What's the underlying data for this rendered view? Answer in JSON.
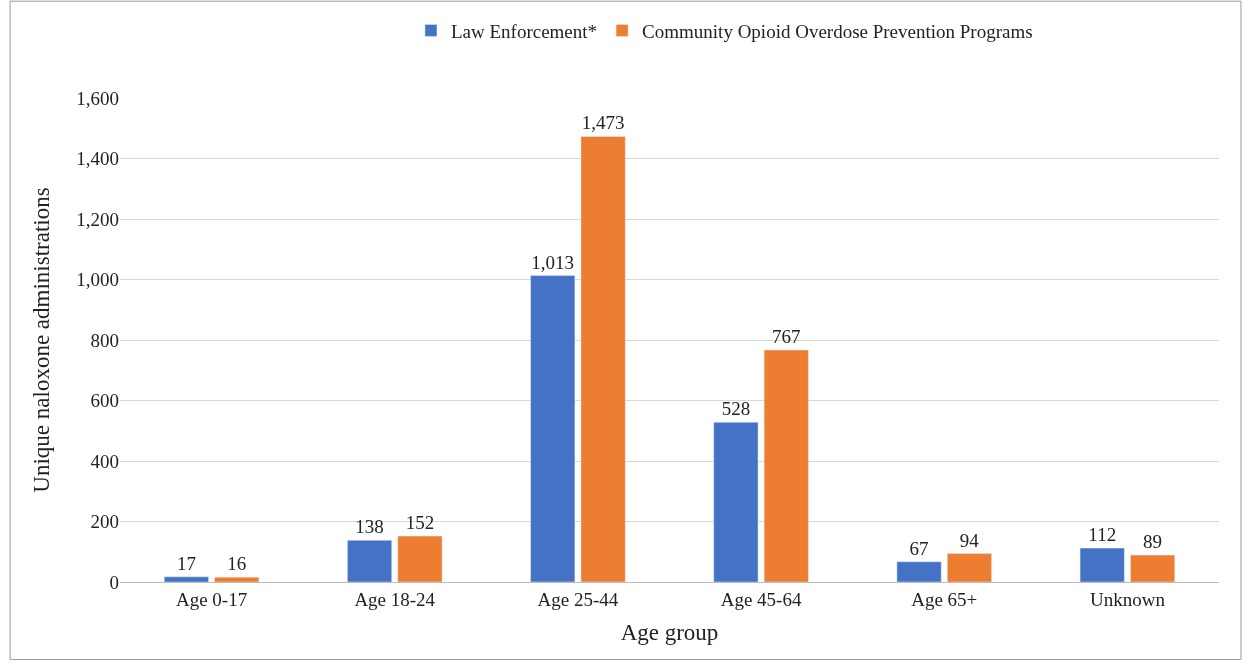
{
  "chart_data": {
    "type": "bar",
    "xlabel": "Age group",
    "ylabel": "Unique naloxone administrations",
    "categories": [
      "Age 0-17",
      "Age 18-24",
      "Age 25-44",
      "Age 45-64",
      "Age 65+",
      "Unknown"
    ],
    "series": [
      {
        "name": "Law Enforcement*",
        "color": "#4472c4",
        "values": [
          17,
          138,
          1013,
          528,
          67,
          112
        ],
        "value_labels": [
          "17",
          "138",
          "1,013",
          "528",
          "67",
          "112"
        ]
      },
      {
        "name": "Community Opioid Overdose Prevention Programs",
        "color": "#ed7d31",
        "values": [
          16,
          152,
          1473,
          767,
          94,
          89
        ],
        "value_labels": [
          "16",
          "152",
          "1,473",
          "767",
          "94",
          "89"
        ]
      }
    ],
    "ylim": [
      0,
      1600
    ],
    "yticks": [
      {
        "value": 0,
        "label": "0"
      },
      {
        "value": 200,
        "label": "200"
      },
      {
        "value": 400,
        "label": "400"
      },
      {
        "value": 600,
        "label": "600"
      },
      {
        "value": 800,
        "label": "800"
      },
      {
        "value": 1000,
        "label": "1,000"
      },
      {
        "value": 1200,
        "label": "1,200"
      },
      {
        "value": 1400,
        "label": "1,400"
      },
      {
        "value": 1600,
        "label": "1,600"
      }
    ],
    "grid": "y",
    "legend": "top"
  }
}
